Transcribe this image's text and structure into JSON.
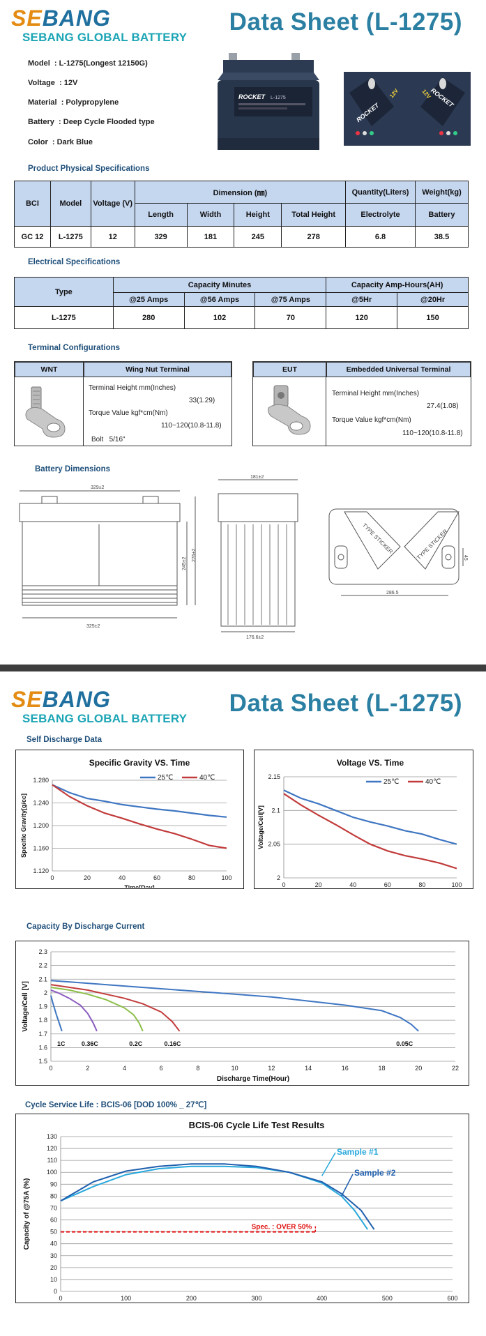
{
  "brand": {
    "logo_se": "SE",
    "logo_bang": "BANG",
    "subtitle": "SEBANG GLOBAL BATTERY"
  },
  "title": "Data Sheet (L-1275)",
  "specs": [
    {
      "label": "Model",
      "value": "L-1275(Longest 12150G)"
    },
    {
      "label": "Voltage",
      "value": "12V"
    },
    {
      "label": "Material",
      "value": "Polypropylene"
    },
    {
      "label": "Battery",
      "value": "Deep Cycle Flooded type"
    },
    {
      "label": "Color",
      "value": "Dark Blue"
    }
  ],
  "battery_labels": {
    "brand": "ROCKET",
    "model": "L-1275",
    "top_brand": "ROCKET",
    "top_voltage": "12V"
  },
  "physical": {
    "section": "Product Physical Specifications",
    "headers": {
      "bci": "BCI",
      "model": "Model",
      "voltage": "Voltage (V)",
      "dimension": "Dimension (㎜)",
      "quantity": "Quantity(Liters)",
      "weight": "Weight(kg)"
    },
    "subheaders": {
      "length": "Length",
      "width": "Width",
      "height": "Height",
      "total_height": "Total Height",
      "electrolyte": "Electrolyte",
      "battery": "Battery"
    },
    "row": {
      "bci": "GC 12",
      "model": "L-1275",
      "voltage": "12",
      "length": "329",
      "width": "181",
      "height": "245",
      "total_height": "278",
      "electrolyte": "6.8",
      "battery": "38.5"
    }
  },
  "electrical": {
    "section": "Electrical Specifications",
    "headers": {
      "type": "Type",
      "cap_min": "Capacity Minutes",
      "cap_ah": "Capacity Amp-Hours(AH)"
    },
    "subheaders": [
      "@25 Amps",
      "@56 Amps",
      "@75 Amps",
      "@5Hr",
      "@20Hr"
    ],
    "row": {
      "type": "L-1275",
      "values": [
        "280",
        "102",
        "70",
        "120",
        "150"
      ]
    }
  },
  "terminal": {
    "section": "Terminal Configurations",
    "wnt": {
      "code": "WNT",
      "name": "Wing Nut Terminal",
      "height_label": "Terminal Height mm(Inches)",
      "height_value": "33(1.29)",
      "torque_label": "Torque Value kgf*cm(Nm)",
      "torque_value": "110~120(10.8-11.8)",
      "bolt_label": "Bolt",
      "bolt_value": "5/16\""
    },
    "eut": {
      "code": "EUT",
      "name": "Embedded Universal Terminal",
      "height_label": "Terminal Height mm(Inches)",
      "height_value": "27.4(1.08)",
      "torque_label": "Torque Value kgf*cm(Nm)",
      "torque_value": "110~120(10.8-11.8)"
    }
  },
  "dimensions": {
    "section": "Battery Dimensions",
    "front_top": "329±2",
    "front_bottom": "325±2",
    "front_h1": "245±2",
    "front_h2": "276±2",
    "side_top": "181±2",
    "side_bottom": "176.6±2",
    "top_width": "286.5",
    "top_h": "45",
    "sticker": "TYPE STICKER"
  },
  "self_discharge": {
    "section": "Self Discharge Data"
  },
  "capacity_section": "Capacity By Discharge Current",
  "cycle_section": "Cycle Service Life : BCIS-06  [DOD 100% _ 27℃]",
  "colors": {
    "blue": "#3f76c2",
    "red": "#c23b3b",
    "purple": "#8a5cc0",
    "green": "#8cbf48",
    "light_blue": "#28a8dc",
    "dark_blue": "#1f5fae",
    "header_bg": "#c5d6ef"
  },
  "chart_data": [
    {
      "type": "line",
      "title": "Specific Gravity VS. Time",
      "xlabel": "Time[Day]",
      "ylabel": "Specific Gravity[g/cc]",
      "xlim": [
        0,
        100
      ],
      "ylim": [
        1.12,
        1.28
      ],
      "xticks": [
        "0",
        "20",
        "40",
        "60",
        "80",
        "100"
      ],
      "yticks": [
        "1.120",
        "1.160",
        "1.200",
        "1.240",
        "1.280"
      ],
      "legend": "top-right",
      "series": [
        {
          "name": "25℃",
          "x": [
            0,
            10,
            20,
            30,
            40,
            50,
            60,
            70,
            80,
            90,
            100
          ],
          "y": [
            1.272,
            1.258,
            1.248,
            1.243,
            1.237,
            1.233,
            1.229,
            1.226,
            1.222,
            1.218,
            1.215
          ]
        },
        {
          "name": "40℃",
          "x": [
            0,
            10,
            20,
            30,
            40,
            50,
            60,
            70,
            80,
            90,
            100
          ],
          "y": [
            1.272,
            1.251,
            1.235,
            1.222,
            1.213,
            1.203,
            1.194,
            1.186,
            1.176,
            1.165,
            1.16
          ]
        }
      ]
    },
    {
      "type": "line",
      "title": "Voltage VS. Time",
      "xlabel": "Time[Day]",
      "ylabel": "Voltage/Cell[V]",
      "xlim": [
        0,
        100
      ],
      "ylim": [
        2.0,
        2.15
      ],
      "xticks": [
        "0",
        "20",
        "40",
        "60",
        "80",
        "100"
      ],
      "yticks": [
        "2",
        "2.05",
        "2.1",
        "2.15"
      ],
      "legend": "top-right",
      "series": [
        {
          "name": "25℃",
          "x": [
            0,
            10,
            20,
            30,
            40,
            50,
            60,
            70,
            80,
            90,
            100
          ],
          "y": [
            2.13,
            2.118,
            2.11,
            2.1,
            2.09,
            2.083,
            2.077,
            2.07,
            2.065,
            2.057,
            2.05
          ]
        },
        {
          "name": "40℃",
          "x": [
            0,
            10,
            20,
            30,
            40,
            50,
            60,
            70,
            80,
            90,
            100
          ],
          "y": [
            2.125,
            2.108,
            2.093,
            2.079,
            2.064,
            2.05,
            2.04,
            2.033,
            2.028,
            2.022,
            2.014
          ]
        }
      ]
    },
    {
      "type": "line",
      "title": "",
      "xlabel": "Discharge  Time(Hour)",
      "ylabel": "Voltage/Cell [V]",
      "xlim": [
        0,
        22
      ],
      "ylim": [
        1.5,
        2.3
      ],
      "xticks": [
        "0",
        "2",
        "4",
        "6",
        "8",
        "10",
        "12",
        "14",
        "16",
        "18",
        "20",
        "22"
      ],
      "yticks": [
        "1.5",
        "1.6",
        "1.7",
        "1.8",
        "1.9",
        "2",
        "2.1",
        "2.2",
        "2.3"
      ],
      "series": [
        {
          "name": "1C",
          "x": [
            0,
            0.1,
            0.3,
            0.5,
            0.6
          ],
          "y": [
            1.98,
            1.93,
            1.84,
            1.76,
            1.72
          ]
        },
        {
          "name": "0.36C",
          "x": [
            0,
            0.4,
            1.0,
            1.6,
            2.0,
            2.3,
            2.5
          ],
          "y": [
            2.02,
            2.0,
            1.96,
            1.91,
            1.85,
            1.78,
            1.72
          ]
        },
        {
          "name": "0.2C",
          "x": [
            0,
            1,
            2,
            3,
            4,
            4.5,
            4.8,
            5.0
          ],
          "y": [
            2.04,
            2.02,
            1.99,
            1.95,
            1.89,
            1.84,
            1.78,
            1.72
          ]
        },
        {
          "name": "0.16C",
          "x": [
            0,
            1,
            2,
            3,
            4,
            5,
            6,
            6.6,
            7.0
          ],
          "y": [
            2.06,
            2.04,
            2.02,
            1.99,
            1.96,
            1.92,
            1.86,
            1.79,
            1.72
          ]
        },
        {
          "name": "0.05C",
          "x": [
            0,
            2,
            4,
            6,
            8,
            10,
            12,
            14,
            16,
            18,
            19,
            19.6,
            20.0
          ],
          "y": [
            2.09,
            2.07,
            2.05,
            2.03,
            2.01,
            1.99,
            1.97,
            1.94,
            1.91,
            1.87,
            1.82,
            1.77,
            1.72
          ]
        }
      ]
    },
    {
      "type": "line",
      "title": "BCIS-06 Cycle Life Test Results",
      "xlabel": "Cycle Number",
      "ylabel": "Capacity of @75A (%)",
      "xlim": [
        0,
        600
      ],
      "ylim": [
        0,
        130
      ],
      "xticks": [
        "0",
        "100",
        "200",
        "300",
        "400",
        "500",
        "600"
      ],
      "yticks": [
        "0",
        "10",
        "20",
        "30",
        "40",
        "50",
        "60",
        "70",
        "80",
        "90",
        "100",
        "110",
        "120",
        "130"
      ],
      "spec_line": {
        "value": 50,
        "x_end": 390,
        "label": "Spec. : OVER 50%"
      },
      "series": [
        {
          "name": "Sample #1",
          "x": [
            0,
            50,
            100,
            150,
            200,
            250,
            300,
            350,
            400,
            430,
            450,
            470
          ],
          "y": [
            76,
            88,
            98,
            103,
            105,
            105,
            104,
            100,
            91,
            80,
            68,
            52
          ]
        },
        {
          "name": "Sample #2",
          "x": [
            0,
            50,
            100,
            150,
            200,
            250,
            300,
            350,
            400,
            430,
            460,
            480
          ],
          "y": [
            76,
            92,
            101,
            105,
            107,
            107,
            105,
            100,
            92,
            82,
            68,
            52
          ]
        }
      ]
    }
  ]
}
